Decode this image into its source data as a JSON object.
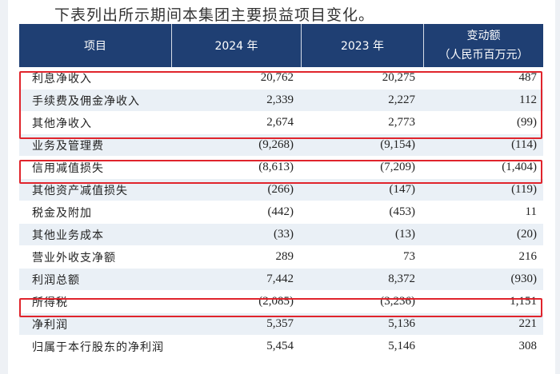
{
  "intro_text": "下表列出所示期间本集团主要损益项目变化。",
  "header": {
    "item": "项目",
    "y2024": "2024 年",
    "y2023": "2023 年",
    "change": "变动额",
    "unit": "（人民币百万元）"
  },
  "rows": [
    {
      "name": "利息净收入",
      "v2024": "20,762",
      "v2023": "20,275",
      "change": "487"
    },
    {
      "name": "手续费及佣金净收入",
      "v2024": "2,339",
      "v2023": "2,227",
      "change": "112"
    },
    {
      "name": "其他净收入",
      "v2024": "2,674",
      "v2023": "2,773",
      "change": "(99)"
    },
    {
      "name": "业务及管理费",
      "v2024": "(9,268)",
      "v2023": "(9,154)",
      "change": "(114)"
    },
    {
      "name": "信用减值损失",
      "v2024": "(8,613)",
      "v2023": "(7,209)",
      "change": "(1,404)"
    },
    {
      "name": "其他资产减值损失",
      "v2024": "(266)",
      "v2023": "(147)",
      "change": "(119)"
    },
    {
      "name": "税金及附加",
      "v2024": "(442)",
      "v2023": "(453)",
      "change": "11"
    },
    {
      "name": "其他业务成本",
      "v2024": "(33)",
      "v2023": "(13)",
      "change": "(20)"
    },
    {
      "name": "营业外收支净额",
      "v2024": "289",
      "v2023": "73",
      "change": "216"
    },
    {
      "name": "利润总额",
      "v2024": "7,442",
      "v2023": "8,372",
      "change": "(930)"
    },
    {
      "name": "所得税",
      "v2024": "(2,085)",
      "v2023": "(3,236)",
      "change": "1,151"
    },
    {
      "name": "净利润",
      "v2024": "5,357",
      "v2023": "5,136",
      "change": "221"
    },
    {
      "name": "归属于本行股东的净利润",
      "v2024": "5,454",
      "v2023": "5,146",
      "change": "308"
    }
  ],
  "highlight_color": "#e0242c"
}
